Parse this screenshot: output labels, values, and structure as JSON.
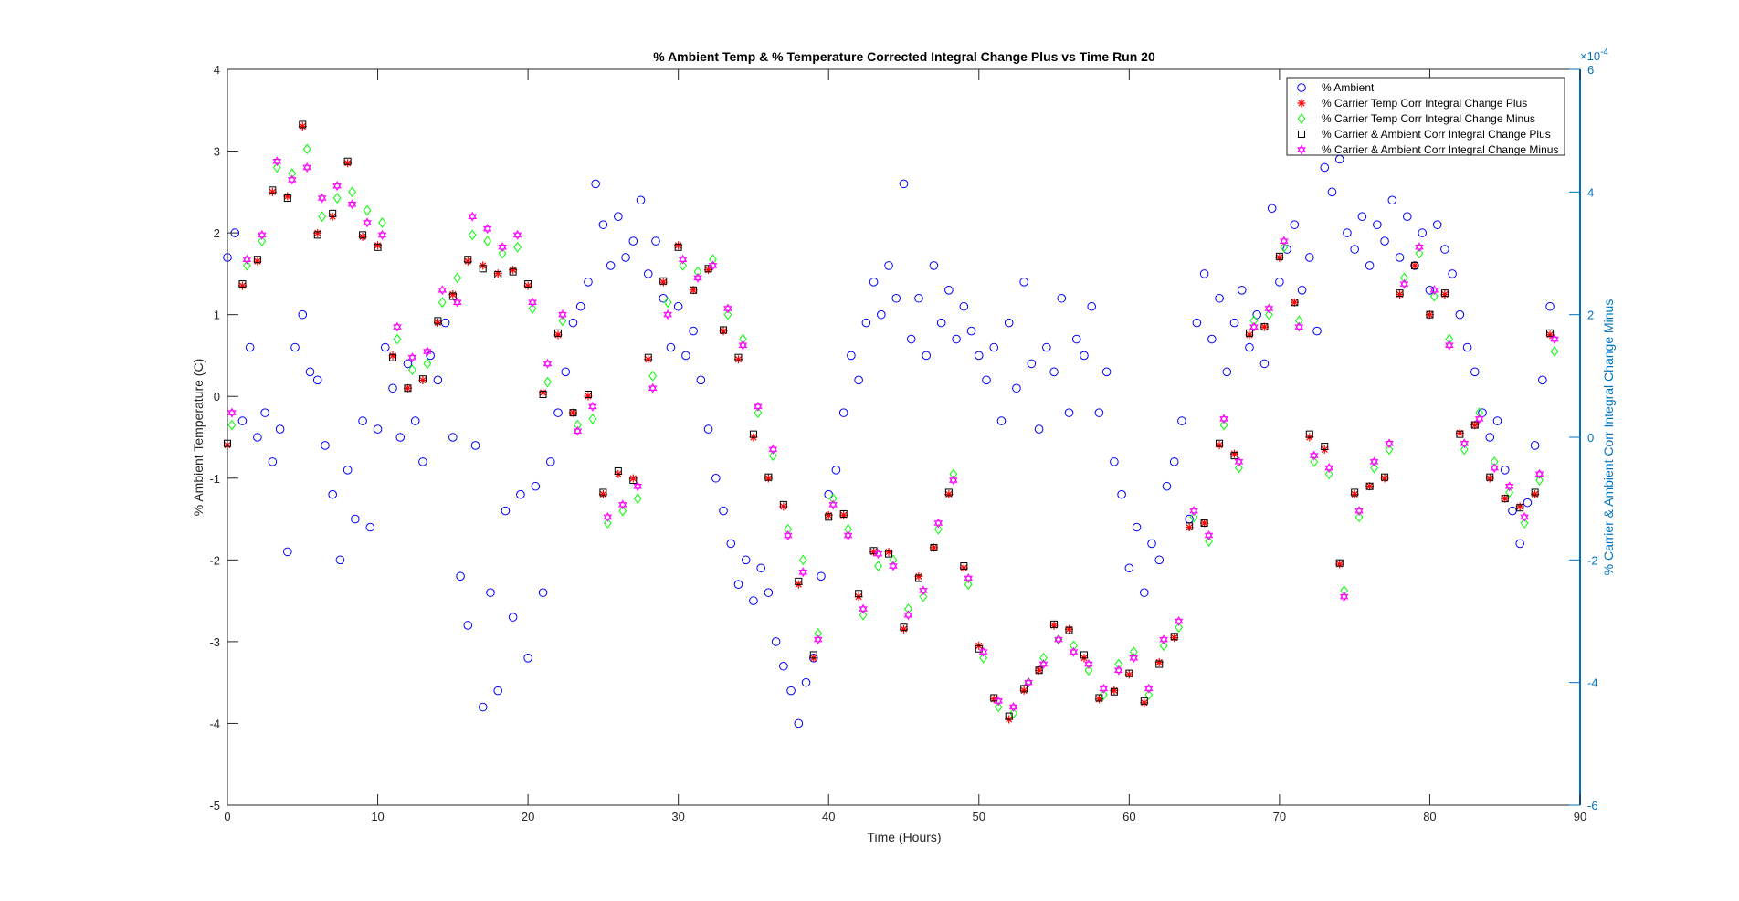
{
  "chart_data": {
    "type": "scatter",
    "title": "% Ambient Temp & % Temperature Corrected Integral Change Plus vs Time Run 20",
    "xlabel": "Time (Hours)",
    "ylabel_left": "% Ambient Temperature (C)",
    "ylabel_right": "% Carrier & Ambient Corr Integral Change Minus",
    "right_exponent_label": "×10",
    "right_exponent": "-4",
    "xlim": [
      0,
      90
    ],
    "ylim_left": [
      -5,
      4
    ],
    "ylim_right": [
      -6,
      6
    ],
    "right_scale_note": "right-axis values in units of 1e-4",
    "xticks": [
      "0",
      "10",
      "20",
      "30",
      "40",
      "50",
      "60",
      "70",
      "80",
      "90"
    ],
    "yticks_left": [
      "-5",
      "-4",
      "-3",
      "-2",
      "-1",
      "0",
      "1",
      "2",
      "3",
      "4"
    ],
    "yticks_right": [
      "-6",
      "-4",
      "-2",
      "0",
      "2",
      "4",
      "6"
    ],
    "legend_position": "top-right",
    "colors": {
      "ambient": "#0000ff",
      "plus": "#ff0000",
      "minus": "#00ff00",
      "amb_plus": "#000000",
      "amb_minus": "#ff00ff",
      "right_axis": "#0072BD"
    },
    "series": [
      {
        "name": "% Ambient",
        "axis": "left",
        "marker": "circle",
        "x": [
          0,
          0.5,
          1,
          1.5,
          2,
          2.5,
          3,
          3.5,
          4,
          4.5,
          5,
          5.5,
          6,
          6.5,
          7,
          7.5,
          8,
          8.5,
          9,
          9.5,
          10,
          10.5,
          11,
          11.5,
          12,
          12.5,
          13,
          13.5,
          14,
          14.5,
          15,
          15.5,
          16,
          16.5,
          17,
          17.5,
          18,
          18.5,
          19,
          19.5,
          20,
          20.5,
          21,
          21.5,
          22,
          22.5,
          23,
          23.5,
          24,
          24.5,
          25,
          25.5,
          26,
          26.5,
          27,
          27.5,
          28,
          28.5,
          29,
          29.5,
          30,
          30.5,
          31,
          31.5,
          32,
          32.5,
          33,
          33.5,
          34,
          34.5,
          35,
          35.5,
          36,
          36.5,
          37,
          37.5,
          38,
          38.5,
          39,
          39.5,
          40,
          40.5,
          41,
          41.5,
          42,
          42.5,
          43,
          43.5,
          44,
          44.5,
          45,
          45.5,
          46,
          46.5,
          47,
          47.5,
          48,
          48.5,
          49,
          49.5,
          50,
          50.5,
          51,
          51.5,
          52,
          52.5,
          53,
          53.5,
          54,
          54.5,
          55,
          55.5,
          56,
          56.5,
          57,
          57.5,
          58,
          58.5,
          59,
          59.5,
          60,
          60.5,
          61,
          61.5,
          62,
          62.5,
          63,
          63.5,
          64,
          64.5,
          65,
          65.5,
          66,
          66.5,
          67,
          67.5,
          68,
          68.5,
          69,
          69.5,
          70,
          70.5,
          71,
          71.5,
          72,
          72.5,
          73,
          73.5,
          74,
          74.5,
          75,
          75.5,
          76,
          76.5,
          77,
          77.5,
          78,
          78.5,
          79,
          79.5,
          80,
          80.5,
          81,
          81.5,
          82,
          82.5,
          83,
          83.5,
          84,
          84.5,
          85,
          85.5,
          86,
          86.5,
          87,
          87.5,
          88
        ],
        "y": [
          1.7,
          2.0,
          -0.3,
          0.6,
          -0.5,
          -0.2,
          -0.8,
          -0.4,
          -1.9,
          0.6,
          1.0,
          0.3,
          0.2,
          -0.6,
          -1.2,
          -2.0,
          -0.9,
          -1.5,
          -0.3,
          -1.6,
          -0.4,
          0.6,
          0.1,
          -0.5,
          0.4,
          -0.3,
          -0.8,
          0.5,
          0.2,
          0.9,
          -0.5,
          -2.2,
          -2.8,
          -0.6,
          -3.8,
          -2.4,
          -3.6,
          -1.4,
          -2.7,
          -1.2,
          -3.2,
          -1.1,
          -2.4,
          -0.8,
          -0.2,
          0.3,
          0.9,
          1.1,
          1.4,
          2.6,
          2.1,
          1.6,
          2.2,
          1.7,
          1.9,
          2.4,
          1.5,
          1.9,
          1.2,
          0.6,
          1.1,
          0.5,
          0.8,
          0.2,
          -0.4,
          -1.0,
          -1.4,
          -1.8,
          -2.3,
          -2.0,
          -2.5,
          -2.1,
          -2.4,
          -3.0,
          -3.3,
          -3.6,
          -4.0,
          -3.5,
          -3.2,
          -2.2,
          -1.2,
          -0.9,
          -0.2,
          0.5,
          0.2,
          0.9,
          1.4,
          1.0,
          1.6,
          1.2,
          2.6,
          0.7,
          1.2,
          0.5,
          1.6,
          0.9,
          1.3,
          0.7,
          1.1,
          0.8,
          0.5,
          0.2,
          0.6,
          -0.3,
          0.9,
          0.1,
          1.4,
          0.4,
          -0.4,
          0.6,
          0.3,
          1.2,
          -0.2,
          0.7,
          0.5,
          1.1,
          -0.2,
          0.3,
          -0.8,
          -1.2,
          -2.1,
          -1.6,
          -2.4,
          -1.8,
          -2.0,
          -1.1,
          -0.8,
          -0.3,
          -1.5,
          0.9,
          1.5,
          0.7,
          1.2,
          0.3,
          0.9,
          1.3,
          0.6,
          1.0,
          0.4,
          2.3,
          1.4,
          1.8,
          2.1,
          1.3,
          1.7,
          0.8,
          2.8,
          2.5,
          2.9,
          2.0,
          1.8,
          2.2,
          1.6,
          2.1,
          1.9,
          2.4,
          1.7,
          2.2,
          1.6,
          2.0,
          1.3,
          2.1,
          1.8,
          1.5,
          1.0,
          0.6,
          0.3,
          -0.2,
          -0.5,
          -0.3,
          -0.9,
          -1.4,
          -1.8,
          -1.3,
          -0.6,
          0.2,
          1.1
        ]
      },
      {
        "name": "% Carrier Temp Corr Integral Change Plus",
        "axis": "right",
        "marker": "star",
        "x_offset_hours": 0,
        "values": [
          -0.13,
          2.47,
          2.87,
          4.0,
          3.93,
          5.07,
          3.33,
          3.6,
          4.47,
          3.27,
          3.13,
          1.33,
          0.8,
          0.93,
          1.87,
          2.33,
          2.87,
          2.8,
          2.67,
          2.73,
          2.47,
          0.73,
          1.67,
          0.4,
          0.67,
          -0.93,
          -0.6,
          -0.67,
          1.27,
          2.53,
          3.13,
          2.4,
          2.73,
          1.73,
          1.27,
          0.0,
          -0.67,
          -1.13,
          -2.4,
          -3.6,
          -1.27,
          -1.27,
          -2.6,
          -1.87,
          -1.87,
          -3.13,
          -2.27,
          -1.8,
          -0.93,
          -2.13,
          -3.4,
          -4.27,
          -4.6,
          -4.13,
          -3.8,
          -3.07,
          -3.13,
          -3.6,
          -4.27,
          -4.13,
          -3.87,
          -4.33,
          -3.67,
          -3.27,
          -1.47,
          -1.4,
          -0.13,
          -0.27,
          1.67,
          1.8,
          2.93,
          2.2,
          0.0,
          -0.2,
          -2.07,
          -0.93,
          -0.8,
          -0.67,
          2.33,
          2.8,
          2.0,
          2.33,
          0.07,
          0.2,
          -0.67,
          -1.0,
          -1.13,
          -0.93,
          1.67
        ]
      },
      {
        "name": "% Carrier Temp Corr Integral Change Minus",
        "axis": "right",
        "marker": "diamond",
        "x_offset_hours": 0.3,
        "values": [
          0.2,
          2.8,
          3.2,
          4.4,
          4.3,
          4.7,
          3.6,
          3.9,
          4.0,
          3.7,
          3.5,
          1.6,
          1.1,
          1.2,
          2.2,
          2.6,
          3.3,
          3.2,
          3.0,
          3.1,
          2.1,
          0.9,
          1.9,
          0.2,
          0.3,
          -1.4,
          -1.2,
          -1.0,
          1.0,
          2.2,
          2.8,
          2.7,
          2.9,
          2.0,
          1.6,
          0.4,
          -0.3,
          -1.5,
          -2.0,
          -3.2,
          -1.0,
          -1.5,
          -2.9,
          -2.1,
          -2.0,
          -2.8,
          -2.6,
          -1.5,
          -0.6,
          -2.4,
          -3.6,
          -4.4,
          -4.5,
          -4.0,
          -3.6,
          -3.3,
          -3.4,
          -3.8,
          -4.2,
          -3.7,
          -3.5,
          -4.2,
          -3.4,
          -3.1,
          -1.3,
          -1.7,
          0.2,
          -0.5,
          1.9,
          2.0,
          3.1,
          1.9,
          -0.4,
          -0.6,
          -2.5,
          -1.3,
          -0.5,
          -0.2,
          2.6,
          3.0,
          2.3,
          1.6,
          -0.2,
          0.4,
          -0.4,
          -0.9,
          -1.4,
          -0.7,
          1.4
        ]
      },
      {
        "name": "% Carrier & Ambient Corr Integral Change Plus",
        "axis": "right",
        "marker": "square",
        "x_offset_hours": 0,
        "values": [
          -0.1,
          2.5,
          2.9,
          4.03,
          3.9,
          5.1,
          3.3,
          3.65,
          4.5,
          3.3,
          3.1,
          1.3,
          0.8,
          0.95,
          1.9,
          2.3,
          2.9,
          2.75,
          2.65,
          2.7,
          2.5,
          0.7,
          1.7,
          0.4,
          0.7,
          -0.9,
          -0.55,
          -0.7,
          1.3,
          2.55,
          3.1,
          2.4,
          2.75,
          1.75,
          1.3,
          0.05,
          -0.65,
          -1.1,
          -2.35,
          -3.55,
          -1.3,
          -1.25,
          -2.55,
          -1.85,
          -1.9,
          -3.1,
          -2.3,
          -1.8,
          -0.9,
          -2.1,
          -3.45,
          -4.25,
          -4.55,
          -4.1,
          -3.8,
          -3.05,
          -3.15,
          -3.55,
          -4.25,
          -4.15,
          -3.85,
          -4.3,
          -3.7,
          -3.25,
          -1.45,
          -1.4,
          -0.1,
          -0.3,
          1.7,
          1.8,
          2.95,
          2.2,
          0.05,
          -0.15,
          -2.05,
          -0.9,
          -0.8,
          -0.65,
          2.35,
          2.8,
          2.0,
          2.35,
          0.05,
          0.2,
          -0.65,
          -1.0,
          -1.15,
          -0.9,
          1.7
        ]
      },
      {
        "name": "% Carrier & Ambient Corr Integral Change Minus",
        "axis": "right",
        "marker": "hexagram",
        "x_offset_hours": 0.3,
        "values": [
          0.4,
          2.9,
          3.3,
          4.5,
          4.2,
          4.4,
          3.9,
          4.1,
          3.8,
          3.5,
          3.3,
          1.8,
          1.3,
          1.4,
          2.4,
          2.2,
          3.6,
          3.4,
          3.1,
          3.3,
          2.2,
          1.2,
          2.0,
          0.1,
          0.5,
          -1.3,
          -1.1,
          -0.8,
          0.8,
          2.0,
          2.9,
          2.6,
          2.8,
          2.1,
          1.5,
          0.5,
          -0.2,
          -1.6,
          -2.2,
          -3.3,
          -1.1,
          -1.6,
          -2.8,
          -1.9,
          -2.1,
          -2.9,
          -2.5,
          -1.4,
          -0.7,
          -2.3,
          -3.5,
          -4.3,
          -4.4,
          -4.0,
          -3.7,
          -3.3,
          -3.5,
          -3.7,
          -4.1,
          -3.8,
          -3.6,
          -4.1,
          -3.3,
          -3.0,
          -1.2,
          -1.6,
          0.3,
          -0.4,
          1.8,
          2.1,
          3.2,
          1.8,
          -0.3,
          -0.5,
          -2.6,
          -1.2,
          -0.4,
          -0.1,
          2.5,
          3.1,
          2.4,
          1.5,
          -0.1,
          0.3,
          -0.5,
          -0.8,
          -1.3,
          -0.6,
          1.6
        ]
      }
    ]
  }
}
